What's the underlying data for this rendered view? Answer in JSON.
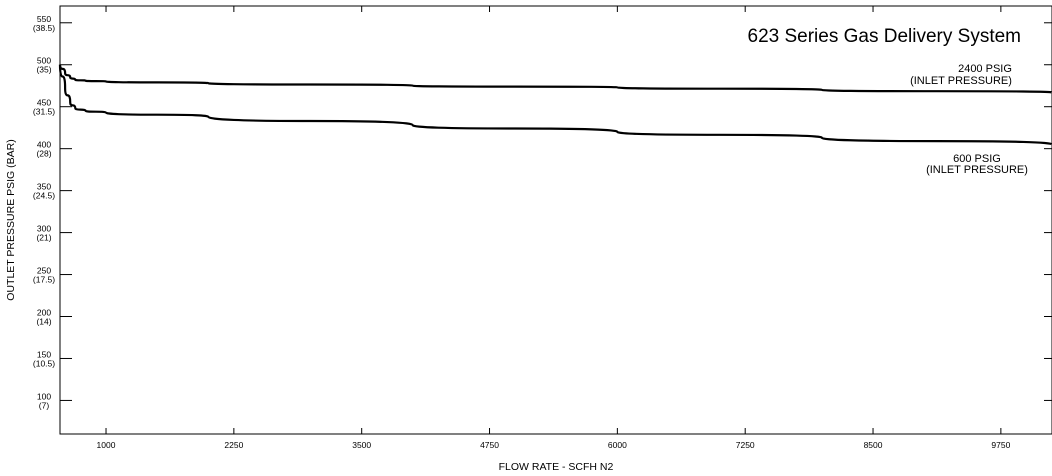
{
  "chart_data": {
    "type": "line",
    "title": "623 Series Gas Delivery System",
    "xlabel": "FLOW RATE - SCFH  N2",
    "ylabel": "OUTLET PRESSURE PSIG (BAR)",
    "xlim": [
      550,
      10250
    ],
    "ylim": [
      60,
      570
    ],
    "x_ticks": [
      {
        "value": 1000,
        "label": "1000"
      },
      {
        "value": 2250,
        "label": "2250"
      },
      {
        "value": 3500,
        "label": "3500"
      },
      {
        "value": 4750,
        "label": "4750"
      },
      {
        "value": 6000,
        "label": "6000"
      },
      {
        "value": 7250,
        "label": "7250"
      },
      {
        "value": 8500,
        "label": "8500"
      },
      {
        "value": 9750,
        "label": "9750"
      }
    ],
    "y_ticks": [
      {
        "value": 550,
        "label": "550",
        "sub": "(38.5)"
      },
      {
        "value": 500,
        "label": "500",
        "sub": "(35)"
      },
      {
        "value": 450,
        "label": "450",
        "sub": "(31.5)"
      },
      {
        "value": 400,
        "label": "400",
        "sub": "(28)"
      },
      {
        "value": 350,
        "label": "350",
        "sub": "(24.5)"
      },
      {
        "value": 300,
        "label": "300",
        "sub": "(21)"
      },
      {
        "value": 250,
        "label": "250",
        "sub": "(17.5)"
      },
      {
        "value": 200,
        "label": "200",
        "sub": "(14)"
      },
      {
        "value": 150,
        "label": "150",
        "sub": "(10.5)"
      },
      {
        "value": 100,
        "label": "100",
        "sub": "(7)"
      }
    ],
    "grid": false,
    "series": [
      {
        "name": "2400 PSIG",
        "name_sub": "(INLET PRESSURE)",
        "x": [
          550,
          600,
          650,
          700,
          800,
          1000,
          2000,
          4000,
          6000,
          8000,
          10250
        ],
        "y": [
          500,
          490,
          485,
          482,
          481,
          480,
          478,
          475,
          473,
          470,
          467
        ]
      },
      {
        "name": "600 PSIG",
        "name_sub": "(INLET PRESSURE)",
        "x": [
          550,
          600,
          650,
          700,
          800,
          1000,
          2000,
          4000,
          6000,
          8000,
          10250
        ],
        "y": [
          500,
          472,
          455,
          448,
          445,
          443,
          438,
          428,
          420,
          413,
          405
        ]
      }
    ]
  }
}
